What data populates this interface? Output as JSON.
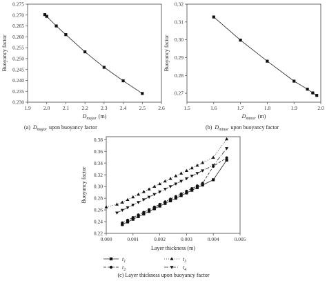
{
  "chart_data": [
    {
      "type": "line",
      "xlabel_base": "D",
      "xlabel_sub": "major",
      "xlabel_unit": "(m)",
      "ylabel": "Buoyancy factor",
      "xlim": [
        1.9,
        2.6
      ],
      "ylim": [
        0.23,
        0.275
      ],
      "x_ticks": [
        "1.9",
        "2.0",
        "2.1",
        "2.2",
        "2.3",
        "2.4",
        "2.5",
        "2.6"
      ],
      "y_ticks": [
        "0.230",
        "0.235",
        "0.240",
        "0.245",
        "0.250",
        "0.255",
        "0.260",
        "0.265",
        "0.270",
        "0.275"
      ],
      "series": [
        {
          "marker": "square",
          "x": [
            1.99,
            2.0,
            2.05,
            2.1,
            2.2,
            2.3,
            2.4,
            2.5
          ],
          "y": [
            0.2702,
            0.2694,
            0.265,
            0.261,
            0.2531,
            0.246,
            0.2398,
            0.234
          ]
        }
      ],
      "caption_prefix": "(a)",
      "caption_base": "D",
      "caption_sub": "major",
      "caption_suffix": "upon buoyancy factor"
    },
    {
      "type": "line",
      "xlabel_base": "D",
      "xlabel_sub": "minor",
      "xlabel_unit": "(m)",
      "ylabel": "Buoyancy factor",
      "xlim": [
        1.5,
        2.0
      ],
      "ylim": [
        0.265,
        0.32
      ],
      "x_ticks": [
        "1.5",
        "1.6",
        "1.7",
        "1.8",
        "1.9",
        "2.0"
      ],
      "y_ticks": [
        "0.27",
        "0.28",
        "0.29",
        "0.30",
        "0.31",
        "0.32"
      ],
      "y_tick_values": [
        0.27,
        0.28,
        0.29,
        0.3,
        0.31,
        0.32
      ],
      "series": [
        {
          "marker": "square",
          "x": [
            1.6,
            1.7,
            1.8,
            1.9,
            1.95,
            1.97,
            1.985
          ],
          "y": [
            0.3128,
            0.2998,
            0.288,
            0.2768,
            0.2723,
            0.2702,
            0.2688
          ]
        }
      ],
      "caption_prefix": "(b)",
      "caption_base": "D",
      "caption_sub": "minor",
      "caption_suffix": "upon buoyancy factor"
    },
    {
      "type": "line",
      "xlabel": "Layer thickness (m)",
      "ylabel": "Buoyancy factor",
      "xlim": [
        0.0,
        0.005
      ],
      "ylim": [
        0.22,
        0.385
      ],
      "x_ticks": [
        "0.000",
        "0.001",
        "0.002",
        "0.003",
        "0.004",
        "0.005"
      ],
      "y_ticks": [
        "0.22",
        "0.24",
        "0.26",
        "0.28",
        "0.30",
        "0.32",
        "0.34",
        "0.36",
        "0.38"
      ],
      "y_tick_values": [
        0.22,
        0.24,
        0.26,
        0.28,
        0.3,
        0.32,
        0.34,
        0.36,
        0.38
      ],
      "series": [
        {
          "name_base": "t",
          "name_sub": "1",
          "marker": "square",
          "dash": "none",
          "x": [
            0.0006,
            0.0008,
            0.001,
            0.0012,
            0.0014,
            0.0016,
            0.0018,
            0.002,
            0.0022,
            0.0024,
            0.0026,
            0.0028,
            0.003,
            0.0032,
            0.0034,
            0.0036,
            0.004,
            0.0045
          ],
          "y": [
            0.235,
            0.2395,
            0.244,
            0.2485,
            0.253,
            0.2575,
            0.262,
            0.2665,
            0.271,
            0.2755,
            0.28,
            0.2845,
            0.289,
            0.2935,
            0.298,
            0.3025,
            0.3115,
            0.345
          ]
        },
        {
          "name_base": "t",
          "name_sub": "2",
          "marker": "circle",
          "dash": "4,2",
          "x": [
            0.0006,
            0.0008,
            0.001,
            0.0012,
            0.0014,
            0.0016,
            0.0018,
            0.002,
            0.0022,
            0.0024,
            0.0026,
            0.0028,
            0.003,
            0.0032,
            0.0034,
            0.0036,
            0.004,
            0.0045
          ],
          "y": [
            0.238,
            0.2425,
            0.247,
            0.2515,
            0.256,
            0.2605,
            0.265,
            0.2695,
            0.274,
            0.2785,
            0.283,
            0.2875,
            0.292,
            0.2965,
            0.301,
            0.3055,
            0.3345,
            0.349
          ]
        },
        {
          "name_base": "t",
          "name_sub": "3",
          "marker": "triangle-up",
          "dash": "1,2",
          "x": [
            0.0,
            0.0004,
            0.0006,
            0.0008,
            0.001,
            0.0012,
            0.0014,
            0.0016,
            0.0018,
            0.002,
            0.0022,
            0.0024,
            0.0026,
            0.0028,
            0.003,
            0.0032,
            0.0034,
            0.0036,
            0.004,
            0.0045
          ],
          "y": [
            0.265,
            0.2695,
            0.273,
            0.2775,
            0.282,
            0.2865,
            0.291,
            0.2955,
            0.3,
            0.3045,
            0.309,
            0.3135,
            0.318,
            0.3225,
            0.327,
            0.3315,
            0.336,
            0.3405,
            0.3495,
            0.381
          ]
        },
        {
          "name_base": "t",
          "name_sub": "4",
          "marker": "triangle-down",
          "dash": "6,2,1,2",
          "x": [
            0.0004,
            0.0006,
            0.0008,
            0.001,
            0.0012,
            0.0014,
            0.0016,
            0.0018,
            0.002,
            0.0022,
            0.0024,
            0.0026,
            0.0028,
            0.003,
            0.0032,
            0.0034,
            0.0036,
            0.004,
            0.0045
          ],
          "y": [
            0.255,
            0.2595,
            0.264,
            0.2685,
            0.273,
            0.2775,
            0.282,
            0.2865,
            0.291,
            0.2955,
            0.3,
            0.3045,
            0.309,
            0.3135,
            0.318,
            0.3225,
            0.327,
            0.336,
            0.365
          ]
        }
      ],
      "caption": "(c) Layer thickness upon buoyancy factor"
    }
  ]
}
